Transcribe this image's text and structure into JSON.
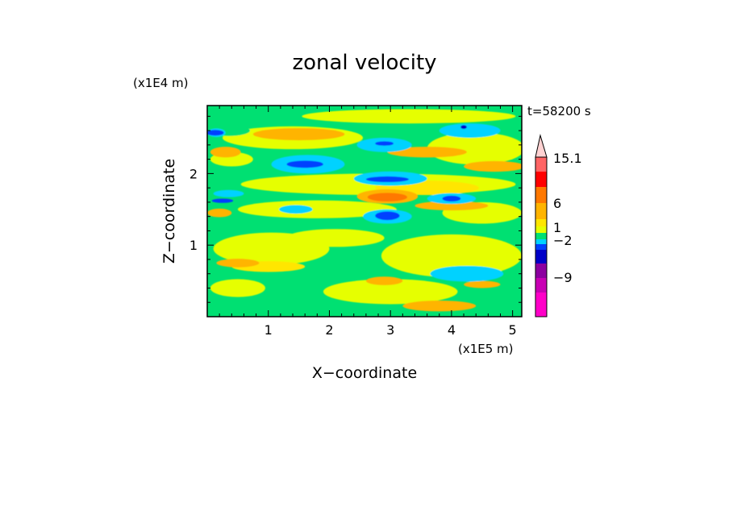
{
  "chart_data": {
    "type": "heatmap",
    "title": "zonal velocity",
    "xlabel": "X−coordinate",
    "ylabel": "Z−coordinate",
    "x_unit": "(x1E5 m)",
    "y_unit": "(x1E4 m)",
    "time_label": "t=58200 s",
    "xlim": [
      0,
      5.15
    ],
    "ylim": [
      0,
      2.95
    ],
    "x_ticks": [
      "1",
      "2",
      "3",
      "4",
      "5"
    ],
    "y_ticks": [
      "1",
      "2"
    ],
    "colorbar": {
      "labels": [
        "15.1",
        "6",
        "1",
        "−2",
        "−9"
      ],
      "colors": [
        "#ff00c8",
        "#c800b4",
        "#8c00a0",
        "#0000c8",
        "#0040ff",
        "#00d2ff",
        "#00e072",
        "#e6ff00",
        "#ffe600",
        "#ffb400",
        "#ff7800",
        "#ff0000",
        "#ff6464",
        "#ffaaaa",
        "#ffd2d2"
      ]
    },
    "background_color": "#00e072",
    "features": [
      {
        "x": 1.05,
        "z": 0.95,
        "w": 1.9,
        "h": 0.45,
        "color": "#e6ff00"
      },
      {
        "x": 4.0,
        "z": 0.85,
        "w": 2.3,
        "h": 0.6,
        "color": "#e6ff00"
      },
      {
        "x": 3.0,
        "z": 0.35,
        "w": 2.2,
        "h": 0.35,
        "color": "#e6ff00"
      },
      {
        "x": 0.5,
        "z": 0.4,
        "w": 0.9,
        "h": 0.25,
        "color": "#e6ff00"
      },
      {
        "x": 1.8,
        "z": 1.5,
        "w": 2.6,
        "h": 0.25,
        "color": "#e6ff00"
      },
      {
        "x": 4.5,
        "z": 1.45,
        "w": 1.3,
        "h": 0.3,
        "color": "#e6ff00"
      },
      {
        "x": 2.8,
        "z": 1.85,
        "w": 4.5,
        "h": 0.3,
        "color": "#e6ff00"
      },
      {
        "x": 1.4,
        "z": 2.5,
        "w": 2.3,
        "h": 0.32,
        "color": "#e6ff00"
      },
      {
        "x": 3.3,
        "z": 2.8,
        "w": 3.5,
        "h": 0.2,
        "color": "#e6ff00"
      },
      {
        "x": 4.4,
        "z": 2.35,
        "w": 1.6,
        "h": 0.45,
        "color": "#e6ff00"
      },
      {
        "x": 0.4,
        "z": 2.2,
        "w": 0.7,
        "h": 0.2,
        "color": "#e6ff00"
      },
      {
        "x": 2.1,
        "z": 1.1,
        "w": 1.6,
        "h": 0.25,
        "color": "#e6ff00"
      },
      {
        "x": 1.0,
        "z": 0.7,
        "w": 1.2,
        "h": 0.15,
        "color": "#ffe600"
      },
      {
        "x": 3.6,
        "z": 1.8,
        "w": 1.7,
        "h": 0.2,
        "color": "#ffe600"
      },
      {
        "x": 1.5,
        "z": 2.55,
        "w": 1.5,
        "h": 0.17,
        "color": "#ffb400"
      },
      {
        "x": 0.3,
        "z": 2.3,
        "w": 0.5,
        "h": 0.15,
        "color": "#ffb400"
      },
      {
        "x": 2.95,
        "z": 1.68,
        "w": 1.0,
        "h": 0.2,
        "color": "#ffb400"
      },
      {
        "x": 3.6,
        "z": 2.3,
        "w": 1.3,
        "h": 0.15,
        "color": "#ffb400"
      },
      {
        "x": 4.7,
        "z": 2.1,
        "w": 1.0,
        "h": 0.15,
        "color": "#ffb400"
      },
      {
        "x": 4.0,
        "z": 1.55,
        "w": 1.2,
        "h": 0.13,
        "color": "#ffb400"
      },
      {
        "x": 0.5,
        "z": 0.75,
        "w": 0.7,
        "h": 0.12,
        "color": "#ffb400"
      },
      {
        "x": 3.8,
        "z": 0.15,
        "w": 1.2,
        "h": 0.15,
        "color": "#ffb400"
      },
      {
        "x": 2.9,
        "z": 0.5,
        "w": 0.6,
        "h": 0.12,
        "color": "#ffb400"
      },
      {
        "x": 4.5,
        "z": 0.45,
        "w": 0.6,
        "h": 0.1,
        "color": "#ffb400"
      },
      {
        "x": 0.2,
        "z": 1.45,
        "w": 0.4,
        "h": 0.12,
        "color": "#ffb400"
      },
      {
        "x": 2.95,
        "z": 1.67,
        "w": 0.65,
        "h": 0.12,
        "color": "#ff7800"
      },
      {
        "x": 0.35,
        "z": 2.6,
        "w": 0.7,
        "h": 0.15,
        "color": "#00e072"
      },
      {
        "x": 1.65,
        "z": 2.13,
        "w": 1.2,
        "h": 0.26,
        "color": "#00d2ff"
      },
      {
        "x": 2.9,
        "z": 2.4,
        "w": 0.9,
        "h": 0.2,
        "color": "#00d2ff"
      },
      {
        "x": 3.0,
        "z": 1.93,
        "w": 1.2,
        "h": 0.2,
        "color": "#00d2ff"
      },
      {
        "x": 2.95,
        "z": 1.4,
        "w": 0.8,
        "h": 0.2,
        "color": "#00d2ff"
      },
      {
        "x": 4.0,
        "z": 1.65,
        "w": 0.8,
        "h": 0.15,
        "color": "#00d2ff"
      },
      {
        "x": 4.3,
        "z": 2.6,
        "w": 1.0,
        "h": 0.2,
        "color": "#00d2ff"
      },
      {
        "x": 4.25,
        "z": 0.6,
        "w": 1.2,
        "h": 0.22,
        "color": "#00d2ff"
      },
      {
        "x": 1.45,
        "z": 1.5,
        "w": 0.55,
        "h": 0.12,
        "color": "#00d2ff"
      },
      {
        "x": 0.15,
        "z": 2.57,
        "w": 0.3,
        "h": 0.12,
        "color": "#00d2ff"
      },
      {
        "x": 0.35,
        "z": 1.72,
        "w": 0.5,
        "h": 0.1,
        "color": "#00d2ff"
      },
      {
        "x": 1.6,
        "z": 2.13,
        "w": 0.6,
        "h": 0.1,
        "color": "#0040ff"
      },
      {
        "x": 2.95,
        "z": 1.41,
        "w": 0.4,
        "h": 0.12,
        "color": "#0040ff"
      },
      {
        "x": 2.95,
        "z": 1.92,
        "w": 0.7,
        "h": 0.08,
        "color": "#0040ff"
      },
      {
        "x": 4.0,
        "z": 1.65,
        "w": 0.3,
        "h": 0.08,
        "color": "#0040ff"
      },
      {
        "x": 2.9,
        "z": 2.42,
        "w": 0.3,
        "h": 0.06,
        "color": "#0040ff"
      },
      {
        "x": 0.13,
        "z": 2.57,
        "w": 0.28,
        "h": 0.08,
        "color": "#0040ff"
      },
      {
        "x": 4.2,
        "z": 2.65,
        "w": 0.1,
        "h": 0.05,
        "color": "#0000c8"
      },
      {
        "x": 0.25,
        "z": 1.62,
        "w": 0.35,
        "h": 0.06,
        "color": "#0040ff"
      }
    ]
  }
}
